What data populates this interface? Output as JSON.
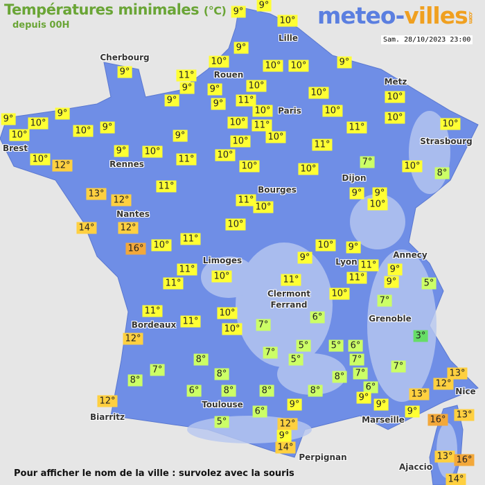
{
  "header": {
    "title": "Températures minimales",
    "unit": "(°C)",
    "subtitle": "depuis 00H",
    "logo_main": "meteo-",
    "logo_accent": "villes",
    "logo_suffix": ".com",
    "datetime": "Sam. 28/10/2023 23:00"
  },
  "footer": "Pour afficher le nom de la ville : survolez avec la souris",
  "colors": {
    "land": "#6f8ee6",
    "relief": "#b8c8f0",
    "background": "#e6e6e6",
    "temp_9_11": "#ffff33",
    "temp_12_15": "#ffd040",
    "temp_16": "#f3a83a",
    "temp_5_8": "#ccff66",
    "temp_3": "#66dd66",
    "title": "#6aa536"
  },
  "temperatures": [
    "9°",
    "9°",
    "10°",
    "9°",
    "10°",
    "10°",
    "10°",
    "9°",
    "9°",
    "11°",
    "9°",
    "9°",
    "10°",
    "9°",
    "9°",
    "11°",
    "10°",
    "10°",
    "10°",
    "10°",
    "10°",
    "9°",
    "9°",
    "10°",
    "10°",
    "10°",
    "9°",
    "10°",
    "11°",
    "10°",
    "11°",
    "10°",
    "9°",
    "9°",
    "10°",
    "11°",
    "10°",
    "10°",
    "11°",
    "10°",
    "12°",
    "7°",
    "10°",
    "8°",
    "10°",
    "10°",
    "11°",
    "13°",
    "12°",
    "11°",
    "10°",
    "9°",
    "9°",
    "10°",
    "14°",
    "12°",
    "10°",
    "16°",
    "10°",
    "11°",
    "10°",
    "9°",
    "9°",
    "11°",
    "9°",
    "11°",
    "11°",
    "10°",
    "11°",
    "11°",
    "9°",
    "5°",
    "10°",
    "7°",
    "11°",
    "10°",
    "6°",
    "11°",
    "10°",
    "7°",
    "12°",
    "5°",
    "5°",
    "6°",
    "3°",
    "7°",
    "5°",
    "8°",
    "7°",
    "7°",
    "7°",
    "8°",
    "8°",
    "7°",
    "8°",
    "13°",
    "12°",
    "6°",
    "8°",
    "8°",
    "8°",
    "6°",
    "9°",
    "13°",
    "9°",
    "9°",
    "12°",
    "6°",
    "9°",
    "16°",
    "13°",
    "5°",
    "12°",
    "9°",
    "14°",
    "13°",
    "16°",
    "14°"
  ],
  "cities": [
    "Lille",
    "Cherbourg",
    "Rouen",
    "Metz",
    "Paris",
    "Brest",
    "Strasbourg",
    "Rennes",
    "Dijon",
    "Bourges",
    "Nantes",
    "Annecy",
    "Limoges",
    "Lyon",
    "Clermont\nFerrand",
    "Grenoble",
    "Bordeaux",
    "Nice",
    "Toulouse",
    "Marseille",
    "Biarritz",
    "Perpignan",
    "Ajaccio"
  ]
}
